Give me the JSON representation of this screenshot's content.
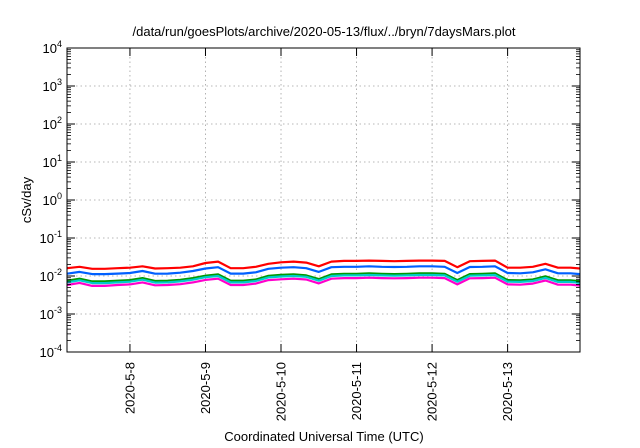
{
  "chart_data": {
    "type": "line",
    "title": "/data/run/goesPlots/archive/2020-05-13/flux/../bryn/7daysMars.plot",
    "xlabel": "Coordinated Universal Time (UTC)",
    "ylabel": "cSv/day",
    "yscale": "log",
    "ylim": [
      0.0001,
      10000
    ],
    "y_ticks": [
      {
        "exp": "-4",
        "value": 0.0001
      },
      {
        "exp": "-3",
        "value": 0.001
      },
      {
        "exp": "-2",
        "value": 0.01
      },
      {
        "exp": "-1",
        "value": 0.1
      },
      {
        "exp": "0",
        "value": 1
      },
      {
        "exp": "1",
        "value": 10
      },
      {
        "exp": "2",
        "value": 100
      },
      {
        "exp": "3",
        "value": 1000
      },
      {
        "exp": "4",
        "value": 10000
      }
    ],
    "y_tick_base": "10",
    "xlim": [
      "2020-05-07 04:00",
      "2020-05-13 23:00"
    ],
    "x_ticks": [
      "2020-5-8",
      "2020-5-9",
      "2020-5-10",
      "2020-5-11",
      "2020-5-12",
      "2020-5-13"
    ],
    "grid": true,
    "legend": "none",
    "x": [
      "2020-05-07 04:00",
      "2020-05-07 08:00",
      "2020-05-07 12:00",
      "2020-05-07 16:00",
      "2020-05-07 20:00",
      "2020-05-08 00:00",
      "2020-05-08 04:00",
      "2020-05-08 08:00",
      "2020-05-08 12:00",
      "2020-05-08 16:00",
      "2020-05-08 20:00",
      "2020-05-09 00:00",
      "2020-05-09 04:00",
      "2020-05-09 08:00",
      "2020-05-09 12:00",
      "2020-05-09 16:00",
      "2020-05-09 20:00",
      "2020-05-10 00:00",
      "2020-05-10 04:00",
      "2020-05-10 08:00",
      "2020-05-10 12:00",
      "2020-05-10 16:00",
      "2020-05-10 20:00",
      "2020-05-11 00:00",
      "2020-05-11 04:00",
      "2020-05-11 08:00",
      "2020-05-11 12:00",
      "2020-05-11 16:00",
      "2020-05-11 20:00",
      "2020-05-12 00:00",
      "2020-05-12 04:00",
      "2020-05-12 08:00",
      "2020-05-12 12:00",
      "2020-05-12 16:00",
      "2020-05-12 20:00",
      "2020-05-13 00:00",
      "2020-05-13 04:00",
      "2020-05-13 08:00",
      "2020-05-13 12:00",
      "2020-05-13 16:00",
      "2020-05-13 20:00",
      "2020-05-13 23:00"
    ],
    "series": [
      {
        "color": "#ff0000",
        "values": [
          0.016,
          0.0175,
          0.0155,
          0.0155,
          0.016,
          0.0165,
          0.018,
          0.0158,
          0.016,
          0.0165,
          0.018,
          0.022,
          0.024,
          0.016,
          0.016,
          0.0175,
          0.021,
          0.023,
          0.024,
          0.0225,
          0.018,
          0.024,
          0.025,
          0.025,
          0.0255,
          0.025,
          0.0245,
          0.025,
          0.0255,
          0.0255,
          0.025,
          0.017,
          0.0245,
          0.025,
          0.0255,
          0.0165,
          0.0165,
          0.0175,
          0.021,
          0.0165,
          0.0165,
          0.0158
        ]
      },
      {
        "color": "#0060ff",
        "values": [
          0.0115,
          0.0128,
          0.0112,
          0.0112,
          0.0116,
          0.012,
          0.0135,
          0.0115,
          0.0116,
          0.0122,
          0.0135,
          0.0158,
          0.017,
          0.0116,
          0.0116,
          0.0125,
          0.0155,
          0.0165,
          0.017,
          0.016,
          0.0128,
          0.017,
          0.0175,
          0.0175,
          0.018,
          0.0175,
          0.0172,
          0.0175,
          0.018,
          0.018,
          0.0175,
          0.012,
          0.0172,
          0.0175,
          0.018,
          0.012,
          0.0118,
          0.0125,
          0.015,
          0.0118,
          0.0118,
          0.0112
        ]
      },
      {
        "color": "#009900",
        "values": [
          0.0075,
          0.0085,
          0.0072,
          0.0072,
          0.0075,
          0.0078,
          0.0088,
          0.0074,
          0.0075,
          0.0079,
          0.0088,
          0.0102,
          0.011,
          0.0075,
          0.0075,
          0.0081,
          0.0101,
          0.0107,
          0.011,
          0.0104,
          0.0083,
          0.011,
          0.0114,
          0.0114,
          0.0117,
          0.0114,
          0.0112,
          0.0114,
          0.0117,
          0.0117,
          0.0114,
          0.0078,
          0.0112,
          0.0114,
          0.0117,
          0.0078,
          0.0077,
          0.0081,
          0.0098,
          0.0077,
          0.0077,
          0.0073
        ]
      },
      {
        "color": "#00cccc",
        "values": [
          0.0068,
          0.0077,
          0.0065,
          0.0065,
          0.0068,
          0.0071,
          0.008,
          0.0067,
          0.0068,
          0.0072,
          0.008,
          0.0093,
          0.01,
          0.0068,
          0.0068,
          0.0074,
          0.0092,
          0.0097,
          0.01,
          0.0095,
          0.0075,
          0.01,
          0.0104,
          0.0104,
          0.0106,
          0.0104,
          0.0102,
          0.0104,
          0.0106,
          0.0106,
          0.0104,
          0.0071,
          0.0102,
          0.0104,
          0.0106,
          0.0071,
          0.007,
          0.0074,
          0.0089,
          0.007,
          0.007,
          0.0066
        ]
      },
      {
        "color": "#ff00cc",
        "values": [
          0.0058,
          0.0066,
          0.0055,
          0.0055,
          0.0058,
          0.006,
          0.0068,
          0.0057,
          0.0058,
          0.0061,
          0.0068,
          0.0079,
          0.0085,
          0.0058,
          0.0058,
          0.0063,
          0.0078,
          0.0082,
          0.0085,
          0.0081,
          0.0064,
          0.0085,
          0.0088,
          0.0088,
          0.009,
          0.0088,
          0.0087,
          0.0088,
          0.009,
          0.009,
          0.0088,
          0.006,
          0.0087,
          0.0088,
          0.009,
          0.006,
          0.0059,
          0.0063,
          0.0076,
          0.0059,
          0.0059,
          0.0056
        ]
      }
    ]
  }
}
